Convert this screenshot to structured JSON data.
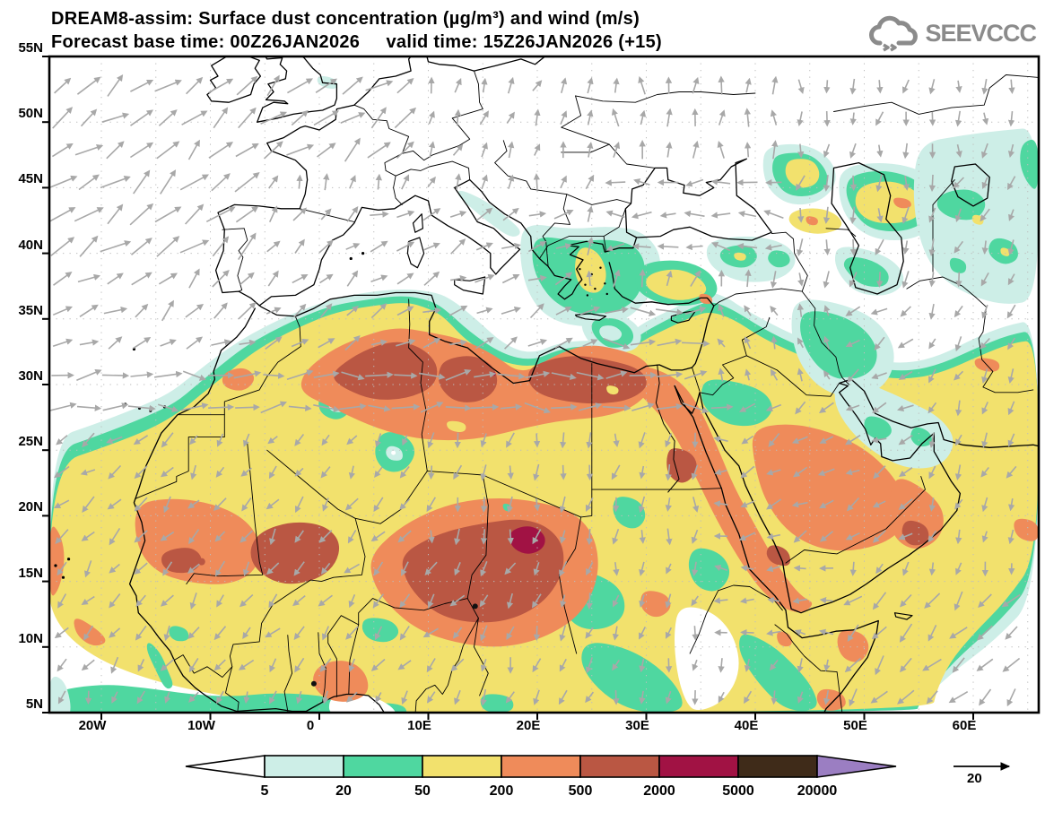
{
  "title": {
    "line1": "DREAM8-assim: Surface dust concentration (µg/m³) and wind (m/s)",
    "line2": "Forecast base time: 00Z26JAN2026     valid time: 15Z26JAN2026 (+15)",
    "base_time": "00Z26JAN2026",
    "valid_time": "15Z26JAN2026 (+15)"
  },
  "logo": {
    "text": "SEEVCCC",
    "color": "#8b8b8b"
  },
  "axes": {
    "lat_ticks": [
      "55N",
      "50N",
      "45N",
      "40N",
      "35N",
      "30N",
      "25N",
      "20N",
      "15N",
      "10N",
      "5N"
    ],
    "lon_ticks": [
      "20W",
      "10W",
      "0",
      "10E",
      "20E",
      "30E",
      "40E",
      "50E",
      "60E"
    ]
  },
  "colorbar": {
    "values": [
      "5",
      "20",
      "50",
      "200",
      "500",
      "2000",
      "5000",
      "20000"
    ],
    "segment_colors": [
      "#cdeee7",
      "#4fd7a0",
      "#f2e16d",
      "#ef8b5a",
      "#ba5743",
      "#a11244",
      "#3f2b19"
    ],
    "left_arrow_color": "#ffffff",
    "right_arrow_color": "#9b7ec2",
    "outline_color": "#000000"
  },
  "wind_legend": {
    "value": "20",
    "arrow_color": "#000000"
  },
  "map": {
    "palette": {
      "below_5": "#ffffff",
      "c5_20": "#cdeee7",
      "c20_50": "#4fd7a0",
      "c50_200": "#f2e16d",
      "c200_500": "#ef8b5a",
      "c500_2000": "#ba5743",
      "c2000_5000": "#a11244",
      "c5000_20000": "#3f2b19",
      "above_20000": "#9b7ec2"
    },
    "wind_arrow_color": "#a8a8a8",
    "coast_color": "#000000",
    "grid_color": "#bdbdbd"
  }
}
